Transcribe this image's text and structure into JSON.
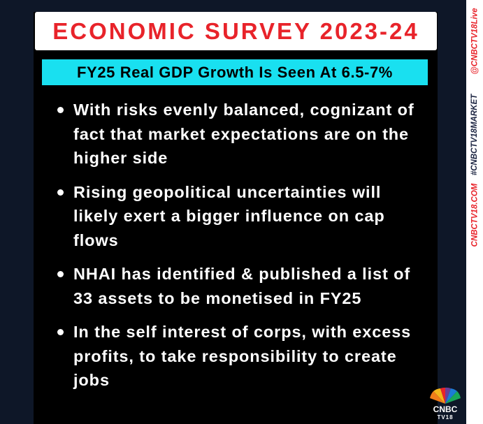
{
  "header": {
    "title": "ECONOMIC SURVEY 2023-24",
    "subtitle": "FY25 Real GDP Growth Is Seen At 6.5-7%"
  },
  "bullets": [
    "With risks evenly balanced, cognizant of fact that market expectations are on the higher side",
    "Rising geopolitical uncertainties will likely exert a bigger influence on cap flows",
    "NHAI has identified & published a list of 33 assets to be monetised in FY25",
    "In the self interest of corps, with excess profits, to take responsibility to create jobs"
  ],
  "sidebar": {
    "handle": "@CNBCTV18Live",
    "hashtag": "#CNBCTV18MARKET",
    "website": "CNBCTV18.COM"
  },
  "logo": {
    "name": "CNBC",
    "channel": "TV18"
  }
}
